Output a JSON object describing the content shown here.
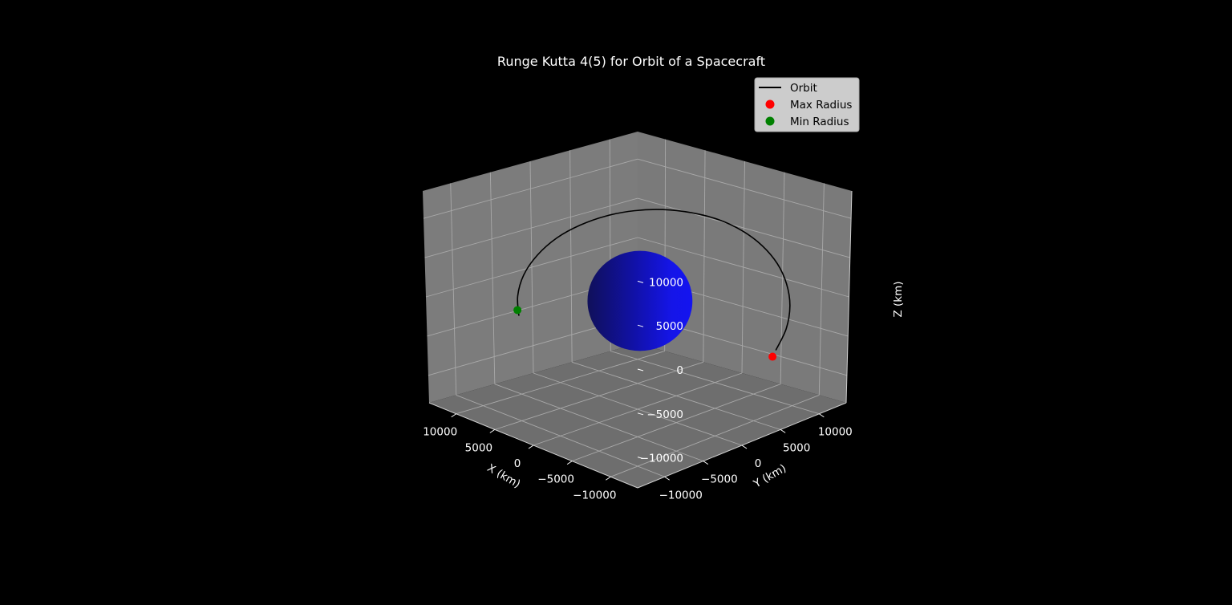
{
  "chart_data": {
    "type": "3d-line",
    "title": "Runge Kutta 4(5) for Orbit of a Spacecraft",
    "xlabel": "X (km)",
    "ylabel": "Y (km)",
    "zlabel": "Z (km)",
    "xlim": [
      -13500,
      13500
    ],
    "ylim": [
      -13500,
      13500
    ],
    "zlim": [
      -13500,
      13500
    ],
    "x_ticks": [
      10000,
      5000,
      0,
      -5000,
      -10000
    ],
    "y_ticks": [
      -10000,
      -5000,
      0,
      5000,
      10000
    ],
    "z_ticks": [
      10000,
      5000,
      0,
      -5000,
      -10000
    ],
    "x_tick_labels": [
      "10000",
      "5000",
      "0",
      "−5000",
      "−10000"
    ],
    "y_tick_labels": [
      "−10000",
      "−5000",
      "0",
      "5000",
      "10000"
    ],
    "z_tick_labels": [
      "10000",
      "5000",
      "0",
      "−5000",
      "−10000"
    ],
    "grid": true,
    "legend_position": "upper-right",
    "legend": [
      {
        "label": "Orbit",
        "marker": "line",
        "color": "#000000"
      },
      {
        "label": "Max Radius",
        "marker": "dot",
        "color": "#ff0000"
      },
      {
        "label": "Min Radius",
        "marker": "dot",
        "color": "#008000"
      }
    ],
    "planet": {
      "center": [
        0,
        0,
        0
      ],
      "radius": 6378,
      "color": "#0000ff"
    },
    "orbit": {
      "name": "Orbit",
      "color": "#000000",
      "points": [
        [
          -13290,
          4420,
          -3630
        ],
        [
          -12640,
          6380,
          -1810
        ],
        [
          -11430,
          8020,
          150
        ],
        [
          -9800,
          9180,
          2040
        ],
        [
          -7800,
          9970,
          3760
        ],
        [
          -5540,
          10270,
          5300
        ],
        [
          -3150,
          10140,
          6520
        ],
        [
          -680,
          9560,
          7420
        ],
        [
          1760,
          8560,
          7890
        ],
        [
          4020,
          7250,
          8020
        ],
        [
          6050,
          5640,
          7760
        ],
        [
          7750,
          3800,
          7140
        ],
        [
          9070,
          1780,
          6160
        ],
        [
          9860,
          -380,
          4930
        ],
        [
          10120,
          -2630,
          3300
        ],
        [
          9800,
          -4700,
          1500
        ],
        [
          8920,
          -6380,
          -390
        ],
        [
          7700,
          -7480,
          -2150
        ]
      ]
    },
    "max_radius_point": [
      -13400,
      3900,
      -4200
    ],
    "min_radius_point": [
      8100,
      -7250,
      -1640
    ]
  }
}
